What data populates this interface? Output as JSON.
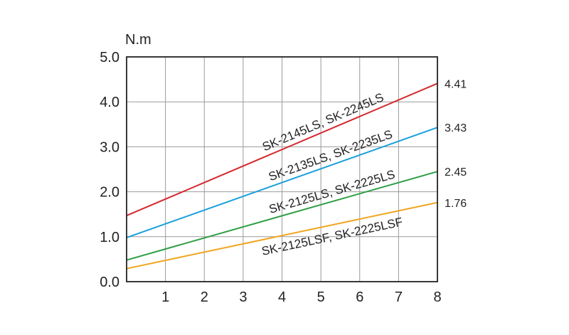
{
  "chart_data": {
    "type": "line",
    "ylabel": "N.m",
    "xlim": [
      0,
      8
    ],
    "ylim": [
      0,
      5
    ],
    "x_ticks": [
      "1",
      "2",
      "3",
      "4",
      "5",
      "6",
      "7",
      "8"
    ],
    "y_ticks": [
      "0.0",
      "1.0",
      "2.0",
      "3.0",
      "4.0",
      "5.0"
    ],
    "grid": true,
    "series": [
      {
        "name": "SK-2145LS, SK-2245LS",
        "x": [
          0,
          8
        ],
        "values": [
          1.47,
          4.41
        ],
        "end_label": "4.41",
        "color": "#d42a2f"
      },
      {
        "name": "SK-2135LS, SK-2235LS",
        "x": [
          0,
          8
        ],
        "values": [
          0.98,
          3.43
        ],
        "end_label": "3.43",
        "color": "#1ba0dc"
      },
      {
        "name": "SK-2125LS, SK-2225LS",
        "x": [
          0,
          8
        ],
        "values": [
          0.48,
          2.45
        ],
        "end_label": "2.45",
        "color": "#2e9e45"
      },
      {
        "name": "SK-2125LSF, SK-2225LSF",
        "x": [
          0,
          8
        ],
        "values": [
          0.29,
          1.76
        ],
        "end_label": "1.76",
        "color": "#f0a520"
      }
    ]
  }
}
